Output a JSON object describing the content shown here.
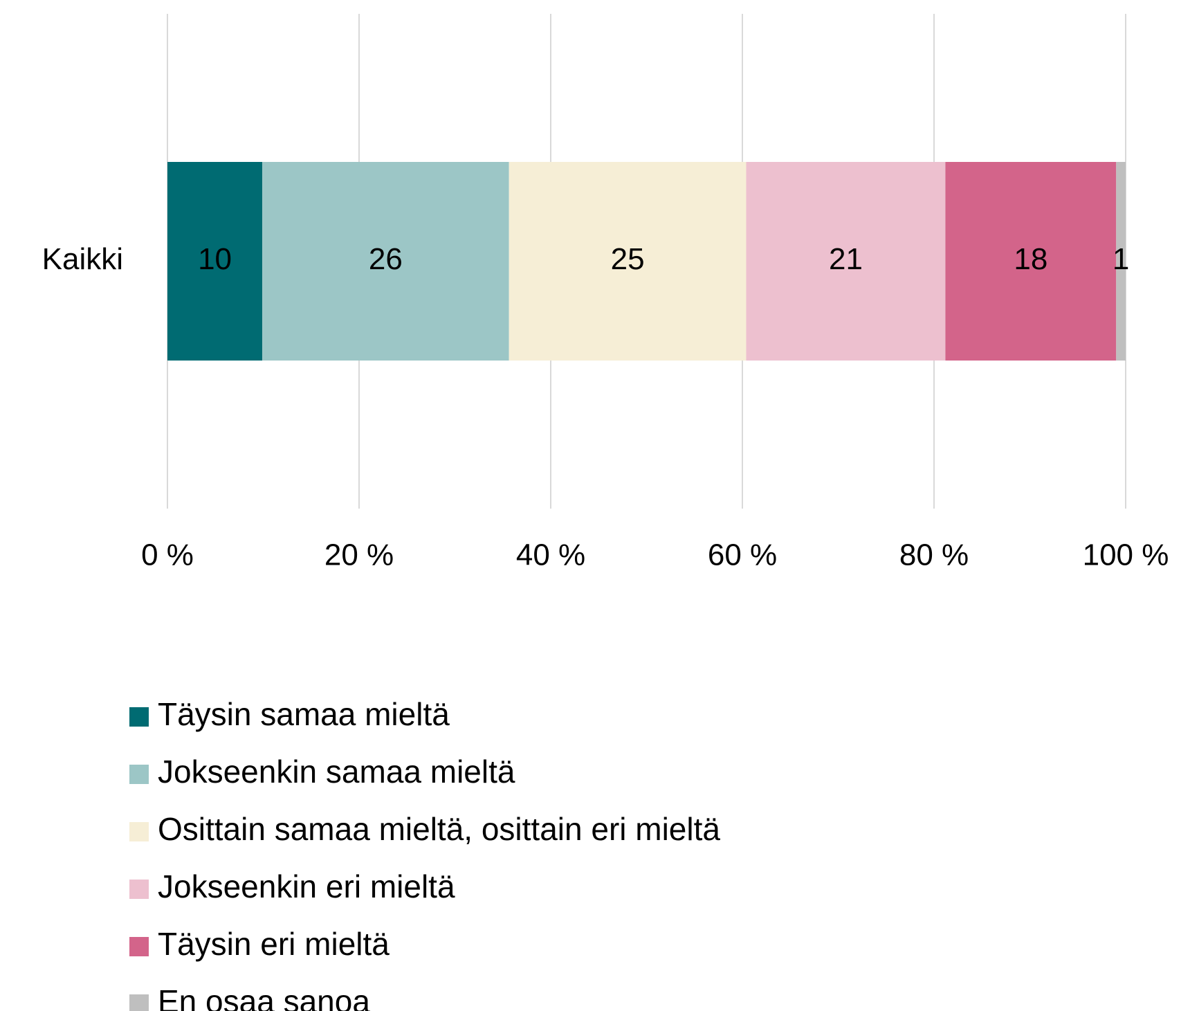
{
  "chart_data": {
    "type": "bar",
    "orientation": "horizontal",
    "stacked": "percent",
    "categories": [
      "Kaikki"
    ],
    "series": [
      {
        "name": "Täysin samaa mieltä",
        "color": "#006b72",
        "values": [
          10
        ]
      },
      {
        "name": "Jokseenkin samaa mieltä",
        "color": "#9cc6c6",
        "values": [
          26
        ]
      },
      {
        "name": "Osittain samaa mieltä, osittain eri mieltä",
        "color": "#f6eed6",
        "values": [
          25
        ]
      },
      {
        "name": "Jokseenkin eri mieltä",
        "color": "#edc0cf",
        "values": [
          21
        ]
      },
      {
        "name": "Täysin eri mieltä",
        "color": "#d3648a",
        "values": [
          18
        ]
      },
      {
        "name": "En osaa sanoa",
        "color": "#bfbfbf",
        "values": [
          1
        ]
      }
    ],
    "xlim": [
      0,
      100
    ],
    "xticks": [
      {
        "value": 0,
        "label": "0 %"
      },
      {
        "value": 20,
        "label": "20 %"
      },
      {
        "value": 40,
        "label": "40 %"
      },
      {
        "value": 60,
        "label": "60 %"
      },
      {
        "value": 80,
        "label": "80 %"
      },
      {
        "value": 100,
        "label": "100 %"
      }
    ],
    "grid": true,
    "legend": "bottom"
  }
}
